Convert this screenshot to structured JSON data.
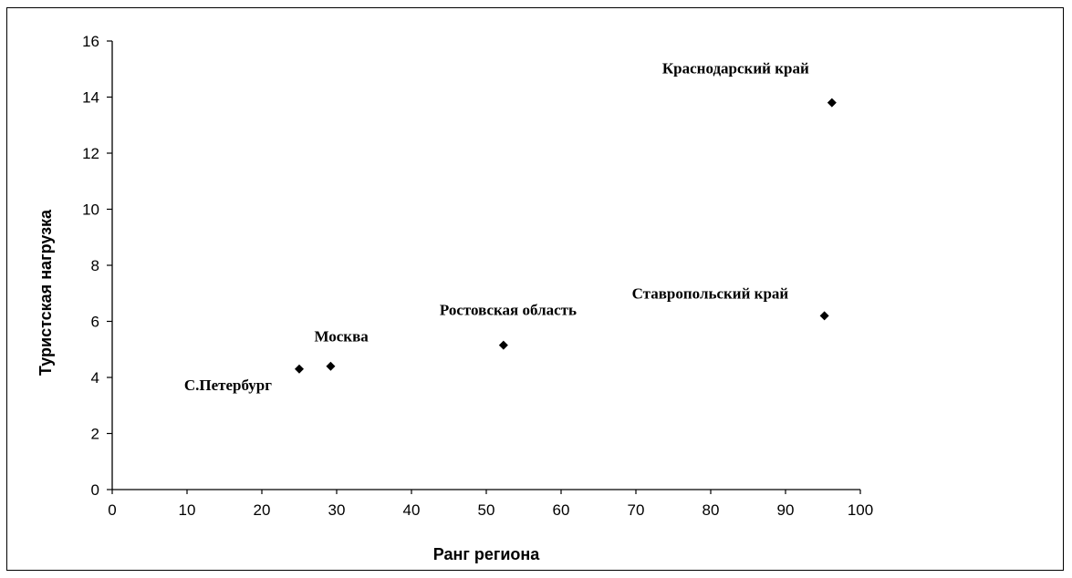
{
  "chart_data": {
    "type": "scatter",
    "title": "",
    "xlabel": "Ранг региона",
    "ylabel": "Туристская нагрузка",
    "xlim": [
      0,
      100
    ],
    "ylim": [
      0,
      16
    ],
    "x_ticks": [
      0,
      10,
      20,
      30,
      40,
      50,
      60,
      70,
      80,
      90,
      100
    ],
    "y_ticks": [
      0,
      2,
      4,
      6,
      8,
      10,
      12,
      14,
      16
    ],
    "grid": false,
    "legend": "none",
    "marker_color": "#000000",
    "points": [
      {
        "label": "С.Петербург",
        "x": 25,
        "y": 4.3
      },
      {
        "label": "Москва",
        "x": 29.2,
        "y": 4.4
      },
      {
        "label": "Ростовская область",
        "x": 52.3,
        "y": 5.15
      },
      {
        "label": "Ставропольский край",
        "x": 95.2,
        "y": 6.2
      },
      {
        "label": "Краснодарский край",
        "x": 96.2,
        "y": 13.8
      }
    ]
  }
}
